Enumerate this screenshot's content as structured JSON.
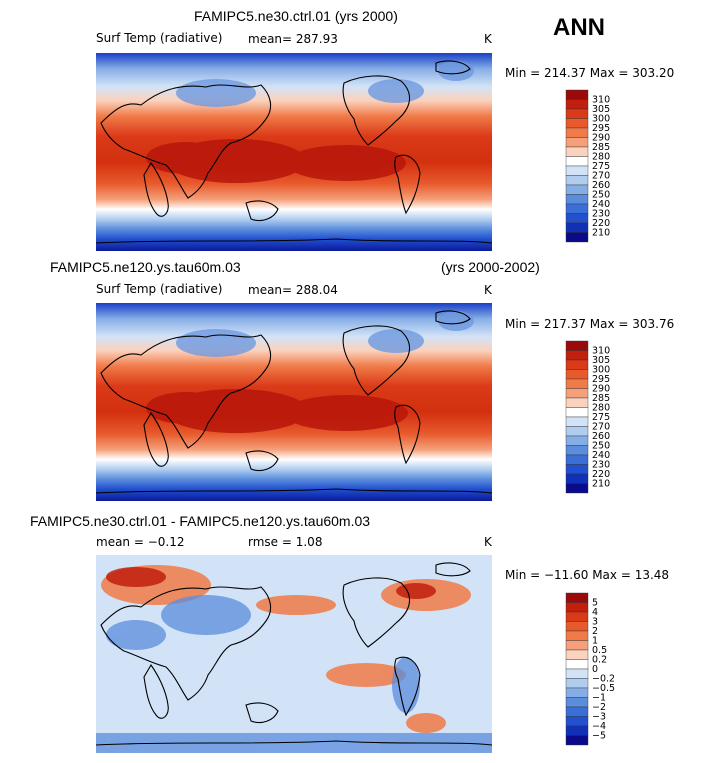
{
  "season": "ANN",
  "panels": [
    {
      "title": "FAMIPC5.ne30.ctrl.01 (yrs 2000)",
      "title_right": "",
      "variable": "Surf Temp (radiative)",
      "stat1": "mean=  287.93",
      "stat2": "",
      "units": "K",
      "minmax": "Min = 214.37  Max = 303.20",
      "colorbar_labels": [
        "310",
        "305",
        "300",
        "295",
        "290",
        "285",
        "280",
        "275",
        "270",
        "260",
        "250",
        "240",
        "230",
        "220",
        "210"
      ],
      "colorbar_colors": [
        "#9b0a0a",
        "#c21f0e",
        "#db3a18",
        "#e85a2c",
        "#f07a48",
        "#f5a07a",
        "#fbd2bd",
        "#ffffff",
        "#d3e3f7",
        "#b0cdf0",
        "#86aee6",
        "#5b8ddd",
        "#3b6fd8",
        "#2250cf",
        "#1030b8",
        "#0a0a8a"
      ]
    },
    {
      "title": "FAMIPC5.ne120.ys.tau60m.03",
      "title_right": "(yrs 2000-2002)",
      "variable": "Surf Temp (radiative)",
      "stat1": "mean=  288.04",
      "stat2": "",
      "units": "K",
      "minmax": "Min = 217.37  Max = 303.76",
      "colorbar_labels": [
        "310",
        "305",
        "300",
        "295",
        "290",
        "285",
        "280",
        "275",
        "270",
        "260",
        "250",
        "240",
        "230",
        "220",
        "210"
      ],
      "colorbar_colors": [
        "#9b0a0a",
        "#c21f0e",
        "#db3a18",
        "#e85a2c",
        "#f07a48",
        "#f5a07a",
        "#fbd2bd",
        "#ffffff",
        "#d3e3f7",
        "#b0cdf0",
        "#86aee6",
        "#5b8ddd",
        "#3b6fd8",
        "#2250cf",
        "#1030b8",
        "#0a0a8a"
      ]
    },
    {
      "title": "FAMIPC5.ne30.ctrl.01 - FAMIPC5.ne120.ys.tau60m.03",
      "title_right": "",
      "variable": "mean =  −0.12",
      "stat1": "rmse =   1.08",
      "stat2": "",
      "units": "K",
      "minmax": "Min = −11.60  Max =  13.48",
      "colorbar_labels": [
        "5",
        "4",
        "3",
        "2",
        "1",
        "0.5",
        "0.2",
        "0",
        "−0.2",
        "−0.5",
        "−1",
        "−2",
        "−3",
        "−4",
        "−5"
      ],
      "colorbar_colors": [
        "#9b0a0a",
        "#c21f0e",
        "#db3a18",
        "#e85a2c",
        "#f07a48",
        "#f5a07a",
        "#fbd2bd",
        "#ffffff",
        "#d3e3f7",
        "#b0cdf0",
        "#86aee6",
        "#5b8ddd",
        "#3b6fd8",
        "#2250cf",
        "#1030b8",
        "#0a0a8a"
      ]
    }
  ]
}
